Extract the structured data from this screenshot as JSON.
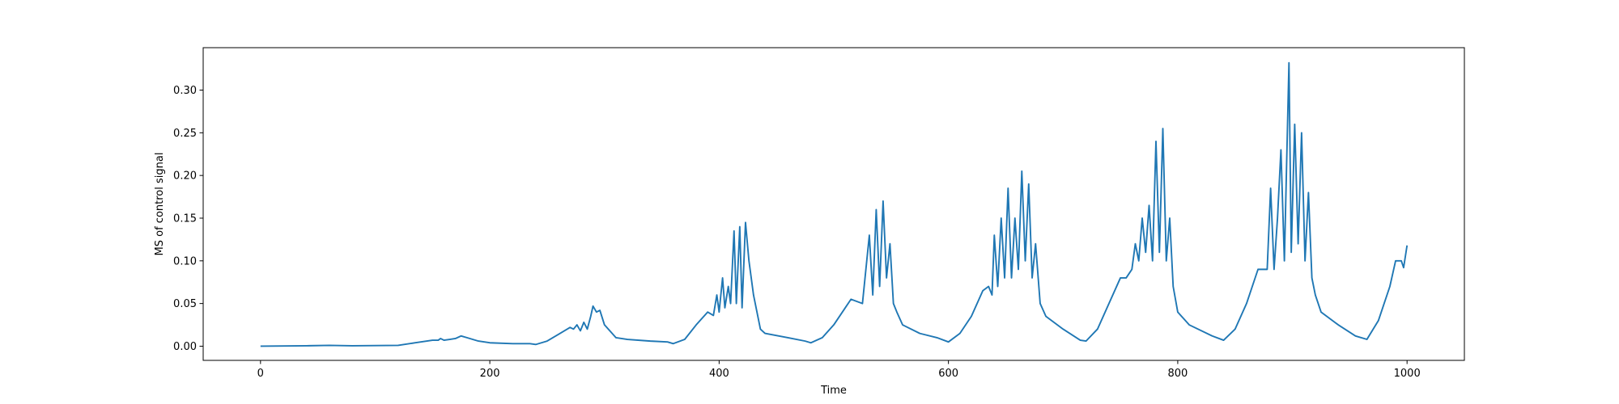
{
  "chart_data": {
    "type": "line",
    "x_label": "Time",
    "y_label": "MS of control signal",
    "xlim": [
      -50,
      1050
    ],
    "ylim": [
      -0.0166,
      0.3497
    ],
    "xticks": [
      0,
      200,
      400,
      600,
      800,
      1000
    ],
    "yticks": [
      {
        "value": 0,
        "label": "0.00"
      },
      {
        "value": 0.05,
        "label": "0.05"
      },
      {
        "value": 0.1,
        "label": "0.10"
      },
      {
        "value": 0.15,
        "label": "0.15"
      },
      {
        "value": 0.2,
        "label": "0.20"
      },
      {
        "value": 0.25,
        "label": "0.25"
      },
      {
        "value": 0.3,
        "label": "0.30"
      }
    ],
    "grid": false,
    "series": [
      {
        "color": "#1f77b4",
        "x": [
          0,
          40,
          60,
          80,
          120,
          135,
          150,
          155,
          157,
          160,
          165,
          170,
          175,
          180,
          190,
          200,
          220,
          235,
          240,
          250,
          260,
          270,
          273,
          276,
          279,
          282,
          285,
          288,
          290,
          293,
          296,
          300,
          310,
          320,
          340,
          355,
          360,
          370,
          380,
          390,
          395,
          398,
          400,
          403,
          405,
          408,
          410,
          413,
          415,
          418,
          420,
          423,
          426,
          430,
          433,
          436,
          440,
          460,
          475,
          480,
          490,
          500,
          510,
          515,
          525,
          528,
          531,
          534,
          537,
          540,
          543,
          546,
          549,
          552,
          555,
          560,
          575,
          590,
          600,
          610,
          620,
          630,
          635,
          638,
          640,
          643,
          646,
          649,
          652,
          655,
          658,
          661,
          664,
          667,
          670,
          673,
          676,
          680,
          685,
          700,
          715,
          720,
          730,
          740,
          750,
          755,
          760,
          763,
          766,
          769,
          772,
          775,
          778,
          781,
          784,
          787,
          790,
          793,
          796,
          800,
          810,
          830,
          840,
          850,
          860,
          870,
          878,
          881,
          884,
          887,
          890,
          893,
          897,
          899,
          902,
          905,
          908,
          911,
          914,
          917,
          920,
          925,
          940,
          955,
          965,
          975,
          985,
          990,
          995,
          997,
          1000
        ],
        "values": [
          0,
          0.0005,
          0.001,
          0.0005,
          0.001,
          0.004,
          0.007,
          0.007,
          0.009,
          0.007,
          0.008,
          0.009,
          0.012,
          0.01,
          0.006,
          0.004,
          0.003,
          0.003,
          0.002,
          0.006,
          0.014,
          0.022,
          0.02,
          0.025,
          0.018,
          0.028,
          0.02,
          0.035,
          0.047,
          0.04,
          0.042,
          0.025,
          0.01,
          0.008,
          0.006,
          0.005,
          0.003,
          0.008,
          0.025,
          0.04,
          0.036,
          0.06,
          0.04,
          0.08,
          0.045,
          0.07,
          0.05,
          0.135,
          0.05,
          0.14,
          0.045,
          0.145,
          0.1,
          0.06,
          0.04,
          0.02,
          0.015,
          0.01,
          0.006,
          0.004,
          0.01,
          0.025,
          0.045,
          0.055,
          0.05,
          0.09,
          0.13,
          0.06,
          0.16,
          0.07,
          0.17,
          0.08,
          0.12,
          0.05,
          0.04,
          0.025,
          0.015,
          0.01,
          0.005,
          0.015,
          0.035,
          0.065,
          0.07,
          0.06,
          0.13,
          0.07,
          0.15,
          0.08,
          0.185,
          0.08,
          0.15,
          0.09,
          0.205,
          0.1,
          0.19,
          0.08,
          0.12,
          0.05,
          0.035,
          0.02,
          0.007,
          0.006,
          0.02,
          0.05,
          0.08,
          0.08,
          0.09,
          0.12,
          0.1,
          0.15,
          0.11,
          0.165,
          0.1,
          0.24,
          0.11,
          0.255,
          0.1,
          0.15,
          0.07,
          0.04,
          0.025,
          0.012,
          0.007,
          0.02,
          0.05,
          0.09,
          0.09,
          0.185,
          0.09,
          0.15,
          0.23,
          0.1,
          0.332,
          0.11,
          0.26,
          0.12,
          0.25,
          0.1,
          0.18,
          0.08,
          0.06,
          0.04,
          0.025,
          0.012,
          0.008,
          0.03,
          0.07,
          0.1,
          0.1,
          0.092,
          0.118
        ]
      }
    ]
  }
}
